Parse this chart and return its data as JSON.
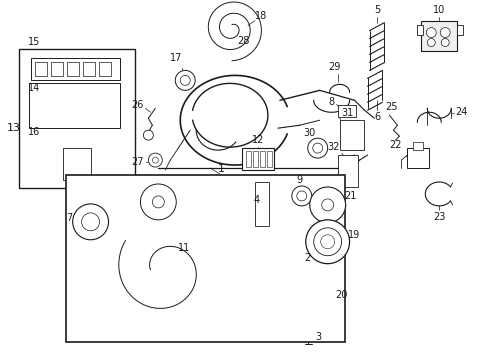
{
  "bg_color": "#ffffff",
  "line_color": "#1a1a1a",
  "fig_width": 4.89,
  "fig_height": 3.6,
  "dpi": 100,
  "font_size": 7.0,
  "font_size_sm": 6.5
}
